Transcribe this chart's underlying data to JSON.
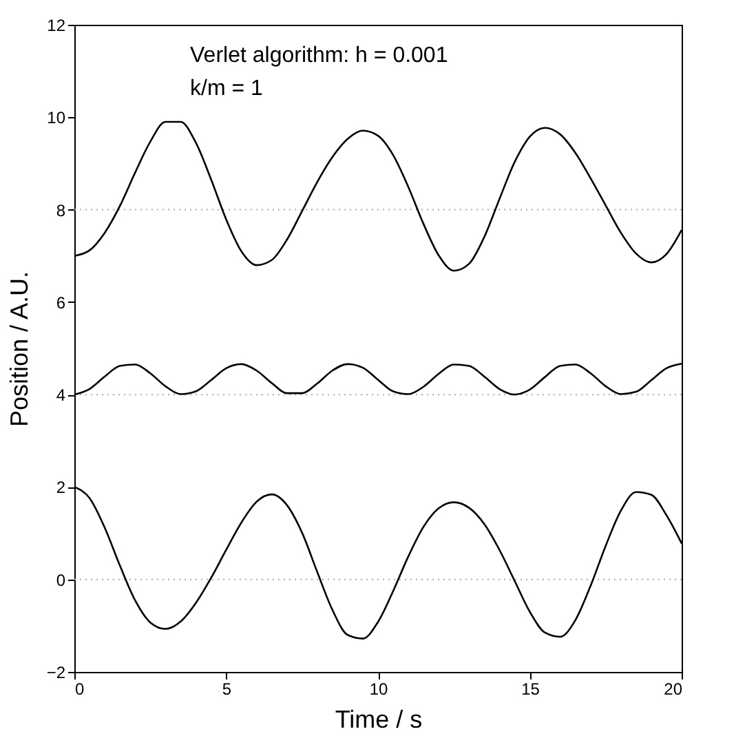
{
  "chart_data": {
    "type": "line",
    "xlabel": "Time / s",
    "ylabel": "Position / A.U.",
    "annotations": [
      "Verlet algorithm: h = 0.001",
      "k/m = 1"
    ],
    "x": [
      0,
      0.5,
      1,
      1.5,
      2,
      2.5,
      3,
      3.5,
      4,
      4.5,
      5,
      5.5,
      6,
      6.5,
      7,
      7.5,
      8,
      8.5,
      9,
      9.5,
      10,
      10.5,
      11,
      11.5,
      12,
      12.5,
      13,
      13.5,
      14,
      14.5,
      15,
      15.5,
      16,
      16.5,
      17,
      17.5,
      18,
      18.5,
      19,
      19.5,
      20
    ],
    "series": [
      {
        "color": "#000000",
        "values": [
          7.0,
          7.12,
          7.5,
          8.08,
          8.8,
          9.47,
          9.9,
          9.9,
          9.45,
          8.66,
          7.79,
          7.1,
          6.8,
          6.91,
          7.35,
          7.97,
          8.6,
          9.14,
          9.53,
          9.71,
          9.6,
          9.18,
          8.49,
          7.69,
          7.01,
          6.68,
          6.83,
          7.41,
          8.23,
          9.03,
          9.58,
          9.77,
          9.63,
          9.23,
          8.68,
          8.09,
          7.5,
          7.05,
          6.86,
          7.04,
          7.56
        ]
      },
      {
        "color": "#000000",
        "values": [
          4.0,
          4.12,
          4.39,
          4.62,
          4.65,
          4.46,
          4.18,
          4.01,
          4.07,
          4.31,
          4.57,
          4.66,
          4.52,
          4.25,
          4.03,
          4.03,
          4.24,
          4.52,
          4.66,
          4.58,
          4.32,
          4.07,
          4.01,
          4.17,
          4.45,
          4.65,
          4.62,
          4.39,
          4.12,
          4.0,
          4.11,
          4.38,
          4.62,
          4.65,
          4.46,
          4.18,
          4.01,
          4.06,
          4.31,
          4.57,
          4.67
        ]
      },
      {
        "color": "#000000",
        "values": [
          2.0,
          1.76,
          1.12,
          0.3,
          -0.45,
          -0.93,
          -1.07,
          -0.91,
          -0.51,
          0.03,
          0.64,
          1.23,
          1.68,
          1.84,
          1.61,
          1.01,
          0.16,
          -0.66,
          -1.2,
          -1.28,
          -0.92,
          -0.25,
          0.5,
          1.14,
          1.54,
          1.67,
          1.55,
          1.2,
          0.64,
          -0.03,
          -0.7,
          -1.15,
          -1.24,
          -0.88,
          -0.14,
          0.73,
          1.49,
          1.89,
          1.83,
          1.39,
          0.78
        ]
      }
    ],
    "xlim": [
      0,
      20
    ],
    "xticks": [
      0,
      5,
      10,
      15,
      20
    ],
    "ylim": [
      -2,
      12
    ],
    "yticks": [
      -2,
      0,
      2,
      4,
      6,
      8,
      10,
      12
    ],
    "ref_lines": [
      {
        "axis": "y",
        "value": 0,
        "color": "#aaaaaa",
        "line_style": "dotted"
      },
      {
        "axis": "y",
        "value": 4,
        "color": "#aaaaaa",
        "line_style": "dotted"
      },
      {
        "axis": "y",
        "value": 8,
        "color": "#aaaaaa",
        "line_style": "dotted"
      }
    ],
    "grid": false,
    "line_style": "solid",
    "marker": "none"
  }
}
